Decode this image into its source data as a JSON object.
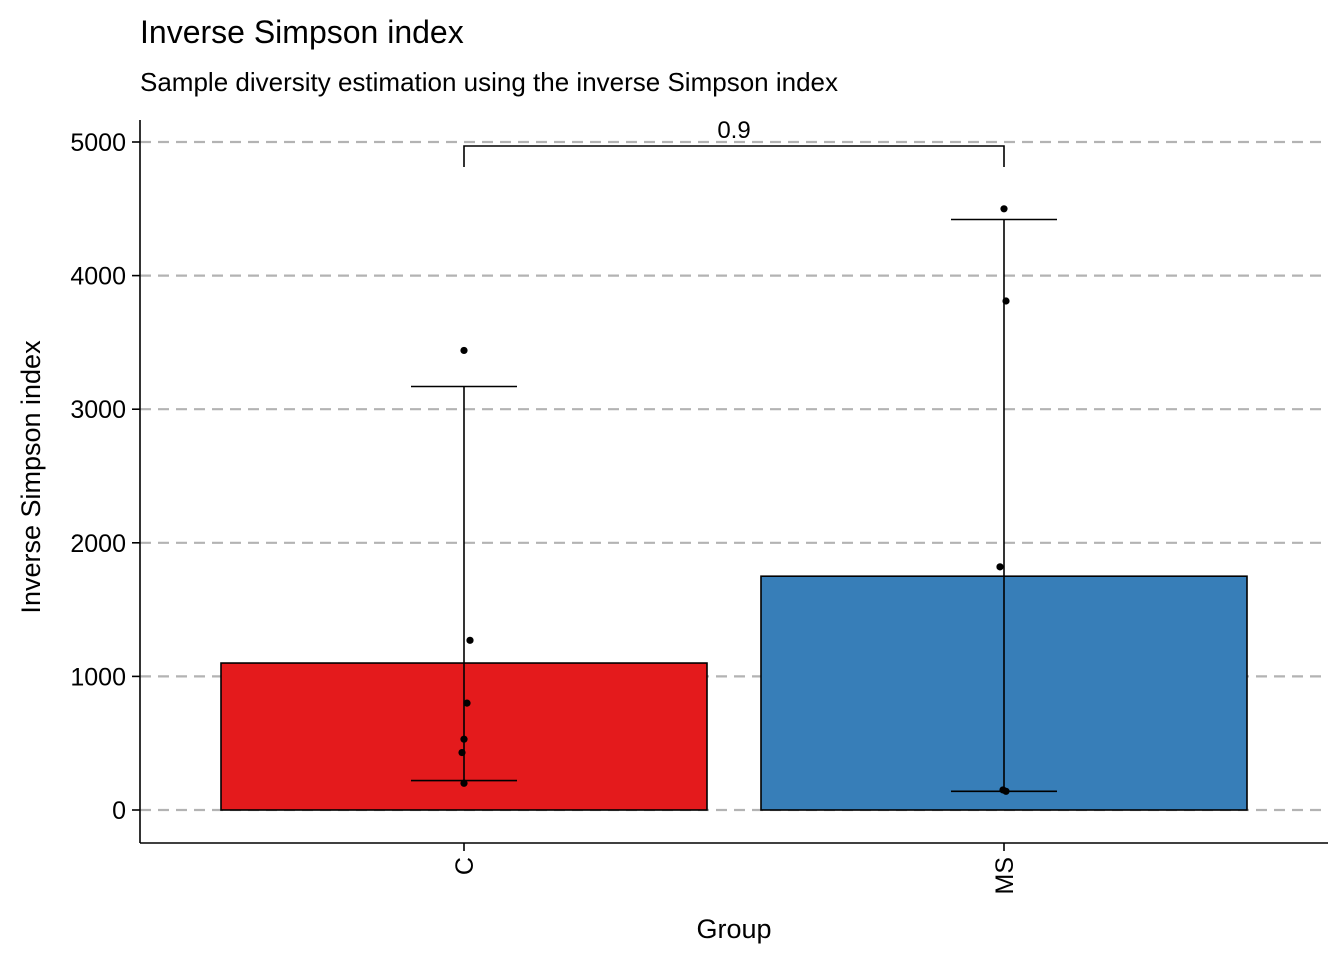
{
  "chart_data": {
    "type": "bar",
    "title": "Inverse Simpson index",
    "subtitle": "Sample diversity estimation using the inverse Simpson index",
    "xlabel": "Group",
    "ylabel": "Inverse Simpson index",
    "categories": [
      "C",
      "MS"
    ],
    "values": [
      1100,
      1750
    ],
    "error_bars": [
      {
        "category": "C",
        "low": 220,
        "high": 3170
      },
      {
        "category": "MS",
        "low": 140,
        "high": 4420
      }
    ],
    "points": [
      {
        "category": "C",
        "values": [
          3440,
          1270,
          800,
          530,
          430,
          200
        ]
      },
      {
        "category": "MS",
        "values": [
          4500,
          3810,
          1820,
          150,
          140
        ]
      }
    ],
    "colors": {
      "C": "#E41A1C",
      "MS": "#377EB8"
    },
    "ylim": [
      0,
      5000
    ],
    "yticks": [
      0,
      1000,
      2000,
      3000,
      4000,
      5000
    ],
    "ytick_labels": [
      "0",
      "1000",
      "2000",
      "3000",
      "4000",
      "5000"
    ],
    "grid": "horizontal-dashed",
    "legend": "none",
    "comparison": {
      "groups": [
        "C",
        "MS"
      ],
      "label": "0.9",
      "value": 0.9
    }
  }
}
